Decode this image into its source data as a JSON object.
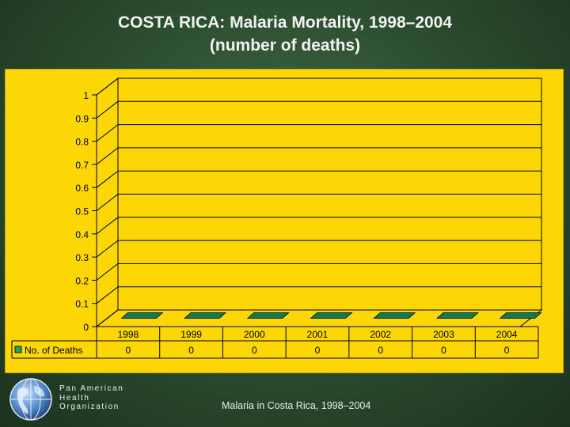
{
  "slide": {
    "title_line1": "COSTA RICA: Malaria Mortality, 1998–2004",
    "title_line2": "(number of deaths)",
    "footer_caption": "Malaria in Costa Rica, 1998–2004",
    "organization": [
      "Pan American",
      "Health",
      "Organization"
    ]
  },
  "colors": {
    "panel": "#fcd705",
    "bar": "#1e9e72",
    "bar_top": "#0f7a55",
    "slide_bg": "#2e5233",
    "text_light": "#f2f2f2"
  },
  "chart_data": {
    "type": "bar",
    "style": "3d",
    "title": "COSTA RICA: Malaria Mortality, 1998–2004 (number of deaths)",
    "categories": [
      "1998",
      "1999",
      "2000",
      "2001",
      "2002",
      "2003",
      "2004"
    ],
    "series": [
      {
        "name": "No. of Deaths",
        "values": [
          0,
          0,
          0,
          0,
          0,
          0,
          0
        ]
      }
    ],
    "ylim": [
      0,
      1
    ],
    "yticks": [
      "0",
      "0.1",
      "0.2",
      "0.3",
      "0.4",
      "0.5",
      "0.6",
      "0.7",
      "0.8",
      "0.9",
      "1"
    ],
    "xlabel": "",
    "ylabel": "",
    "gridlines": true,
    "data_table": true,
    "legend_position": "data-table"
  }
}
